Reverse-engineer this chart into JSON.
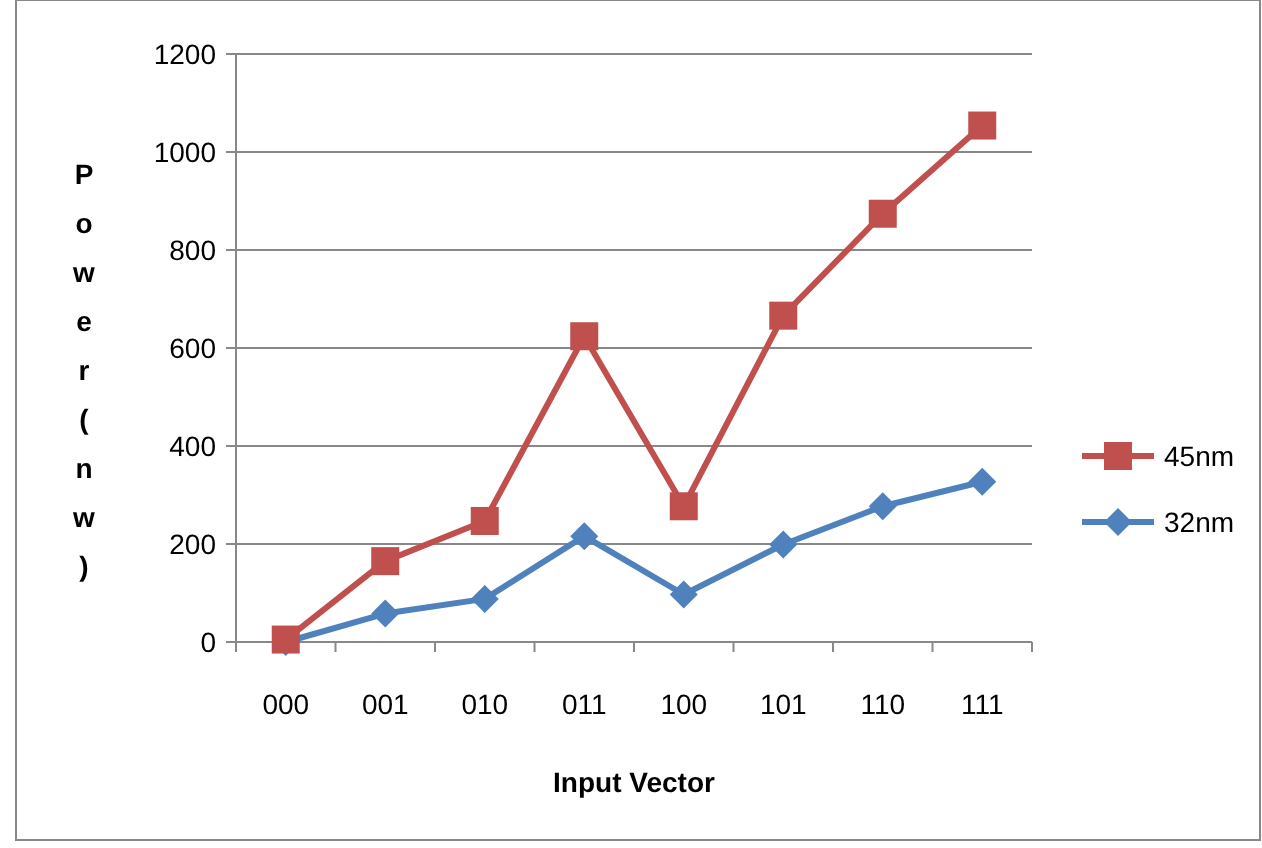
{
  "chart_data": {
    "type": "line",
    "xlabel": "Input Vector",
    "ylabel": "Power(nw)",
    "categories": [
      "000",
      "001",
      "010",
      "011",
      "100",
      "101",
      "110",
      "111"
    ],
    "series": [
      {
        "name": "45nm",
        "color": "#c0504d",
        "marker": "square",
        "values": [
          5,
          165,
          247,
          624,
          277,
          666,
          874,
          1054
        ]
      },
      {
        "name": "32nm",
        "color": "#4f81bd",
        "marker": "diamond",
        "values": [
          0,
          58,
          88,
          216,
          97,
          199,
          277,
          327
        ]
      }
    ],
    "ylim": [
      0,
      1200
    ],
    "yticks": [
      0,
      200,
      400,
      600,
      800,
      1000,
      1200
    ],
    "grid": "y",
    "legend": "right"
  }
}
